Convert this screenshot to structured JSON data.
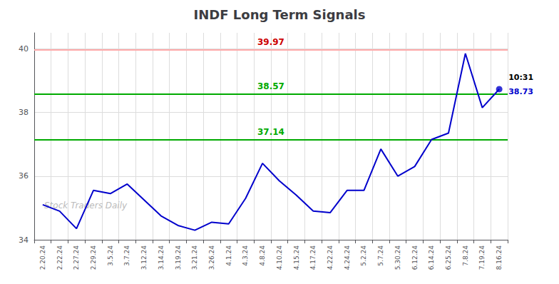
{
  "chart_data": {
    "type": "line",
    "title": "INDF Long Term Signals",
    "categories": [
      "2.20.24",
      "2.22.24",
      "2.27.24",
      "2.29.24",
      "3.5.24",
      "3.7.24",
      "3.12.24",
      "3.14.24",
      "3.19.24",
      "3.21.24",
      "3.26.24",
      "4.1.24",
      "4.3.24",
      "4.8.24",
      "4.10.24",
      "4.15.24",
      "4.17.24",
      "4.22.24",
      "4.24.24",
      "5.2.24",
      "5.7.24",
      "5.30.24",
      "6.12.24",
      "6.14.24",
      "6.25.24",
      "7.8.24",
      "7.19.24",
      "8.16.24"
    ],
    "values": [
      35.1,
      34.9,
      34.35,
      35.55,
      35.45,
      35.75,
      35.25,
      34.75,
      34.45,
      34.3,
      34.55,
      34.5,
      35.3,
      36.4,
      35.85,
      35.4,
      34.9,
      34.85,
      35.55,
      35.55,
      36.85,
      36.0,
      36.3,
      37.15,
      37.35,
      39.85,
      38.15,
      38.73
    ],
    "color": "#0000cc",
    "ylim": [
      34,
      40.5
    ],
    "yticks": [
      34,
      36,
      38,
      40
    ],
    "grid": true,
    "hlines": [
      {
        "value": 39.97,
        "color": "#ffaaaa",
        "label_color": "#cc0000"
      },
      {
        "value": 38.57,
        "color": "#00aa00"
      },
      {
        "value": 37.14,
        "color": "#00aa00"
      }
    ],
    "points": [
      {
        "x": "8.16.24",
        "y": 38.73,
        "color": "#0000cc"
      }
    ],
    "annotations": [
      {
        "text": "10:31",
        "x": "8.16.24",
        "y": 38.73,
        "color": "#000000"
      },
      {
        "text": "38.73",
        "x": "8.16.24",
        "y": 38.73,
        "color": "#0000cc"
      },
      {
        "text": "Stock Traders Daily",
        "color": "#bbbbbb"
      }
    ]
  }
}
